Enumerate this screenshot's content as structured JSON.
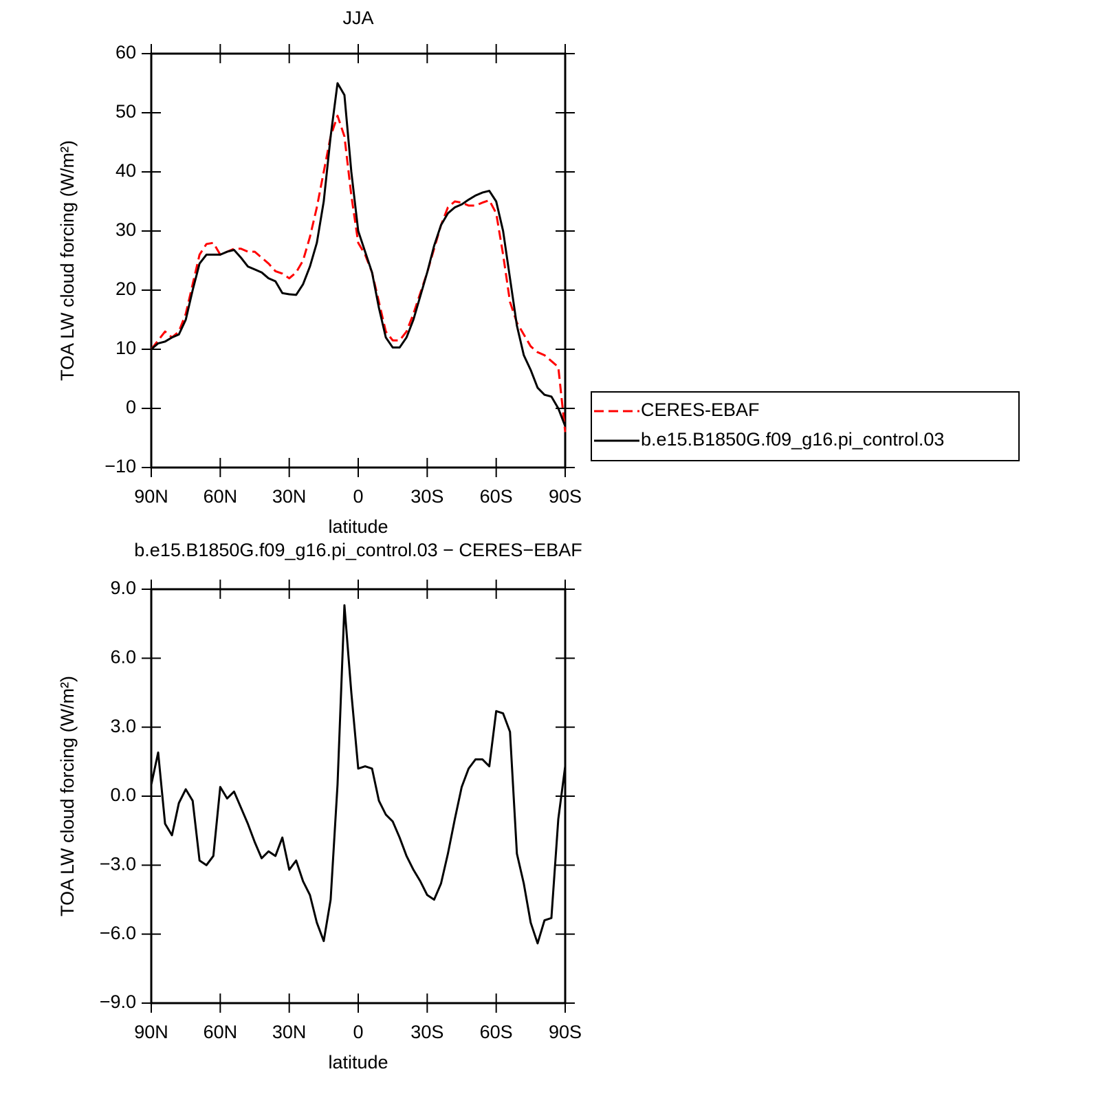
{
  "chart_data": [
    {
      "type": "line",
      "title": "JJA",
      "x_label": "latitude",
      "y_label": "TOA LW cloud forcing (W/m²)",
      "x": [
        90,
        87,
        84,
        81,
        78,
        75,
        72,
        69,
        66,
        63,
        60,
        57,
        54,
        51,
        48,
        45,
        42,
        39,
        36,
        33,
        30,
        27,
        24,
        21,
        18,
        15,
        12,
        9,
        6,
        3,
        0,
        -3,
        -6,
        -9,
        -12,
        -15,
        -18,
        -21,
        -24,
        -27,
        -30,
        -33,
        -36,
        -39,
        -42,
        -45,
        -48,
        -51,
        -54,
        -57,
        -60,
        -63,
        -66,
        -69,
        -72,
        -75,
        -78,
        -81,
        -84,
        -87,
        -90
      ],
      "xlim": [
        90,
        -90
      ],
      "xticks": [
        {
          "value": 90,
          "label": "90N"
        },
        {
          "value": 60,
          "label": "60N"
        },
        {
          "value": 30,
          "label": "30N"
        },
        0,
        {
          "value": -30,
          "label": "30S"
        },
        {
          "value": -60,
          "label": "60S"
        },
        {
          "value": -90,
          "label": "90S"
        }
      ],
      "ylim": [
        -10,
        60
      ],
      "yticks": [
        {
          "value": -10,
          "label": "−10"
        },
        0,
        10,
        20,
        30,
        40,
        50,
        60
      ],
      "legend": "right",
      "series": [
        {
          "name": "CERES-EBAF",
          "color": "#ff0000",
          "linestyle": "dashed",
          "values": [
            10,
            11.5,
            13,
            12,
            13,
            16,
            21,
            26,
            27.8,
            28,
            26,
            26.5,
            27,
            27,
            26.5,
            26.5,
            25.5,
            24.5,
            23.2,
            22.8,
            22,
            23,
            25,
            29,
            34,
            40,
            46,
            49.5,
            46,
            36,
            28,
            26,
            23,
            18,
            13,
            11.5,
            11.5,
            13,
            16,
            19.5,
            23,
            27,
            31,
            34,
            35,
            34.8,
            34.3,
            34.3,
            34.8,
            35.2,
            33,
            26,
            18,
            14.5,
            12.5,
            10.5,
            9.5,
            9,
            8,
            7,
            -4
          ]
        },
        {
          "name": "b.e15.B1850G.f09_g16.pi_control.03",
          "color": "#000000",
          "linestyle": "solid",
          "values": [
            10,
            11,
            11.3,
            12,
            12.5,
            15,
            20,
            24.5,
            26,
            26,
            26,
            26.5,
            26.8,
            25.5,
            24,
            23.5,
            23,
            22,
            21.5,
            19.5,
            19.3,
            19.2,
            21,
            24,
            28,
            35,
            46,
            55,
            53,
            40,
            30,
            26.5,
            23,
            17,
            12,
            10.3,
            10.3,
            12,
            15,
            19,
            23,
            27.5,
            31,
            33,
            34,
            34.5,
            35.3,
            36,
            36.5,
            36.8,
            35,
            30,
            22,
            14,
            9,
            6.5,
            3.5,
            2.3,
            2,
            0,
            -3
          ]
        }
      ]
    },
    {
      "type": "line",
      "title": "b.e15.B1850G.f09_g16.pi_control.03 − CERES−EBAF",
      "x_label": "latitude",
      "y_label": "TOA LW cloud forcing (W/m²)",
      "x": [
        90,
        87,
        84,
        81,
        78,
        75,
        72,
        69,
        66,
        63,
        60,
        57,
        54,
        51,
        48,
        45,
        42,
        39,
        36,
        33,
        30,
        27,
        24,
        21,
        18,
        15,
        12,
        9,
        6,
        3,
        0,
        -3,
        -6,
        -9,
        -12,
        -15,
        -18,
        -21,
        -24,
        -27,
        -30,
        -33,
        -36,
        -39,
        -42,
        -45,
        -48,
        -51,
        -54,
        -57,
        -60,
        -63,
        -66,
        -69,
        -72,
        -75,
        -78,
        -81,
        -84,
        -87,
        -90
      ],
      "xlim": [
        90,
        -90
      ],
      "xticks": [
        {
          "value": 90,
          "label": "90N"
        },
        {
          "value": 60,
          "label": "60N"
        },
        {
          "value": 30,
          "label": "30N"
        },
        0,
        {
          "value": -30,
          "label": "30S"
        },
        {
          "value": -60,
          "label": "60S"
        },
        {
          "value": -90,
          "label": "90S"
        }
      ],
      "ylim": [
        -9,
        9
      ],
      "yticks": [
        {
          "value": -9,
          "label": "−9.0"
        },
        {
          "value": -6,
          "label": "−6.0"
        },
        {
          "value": -3,
          "label": "−3.0"
        },
        {
          "value": 0,
          "label": "0.0"
        },
        {
          "value": 3,
          "label": "3.0"
        },
        {
          "value": 6,
          "label": "6.0"
        },
        {
          "value": 9,
          "label": "9.0"
        }
      ],
      "series": [
        {
          "color": "#000000",
          "linestyle": "solid",
          "values": [
            0.5,
            1.9,
            -1.2,
            -1.7,
            -0.3,
            0.3,
            -0.2,
            -2.8,
            -3.0,
            -2.6,
            0.4,
            -0.1,
            0.2,
            -0.5,
            -1.2,
            -2.0,
            -2.7,
            -2.4,
            -2.6,
            -1.8,
            -3.2,
            -2.8,
            -3.7,
            -4.3,
            -5.5,
            -6.3,
            -4.5,
            0.5,
            8.3,
            4.5,
            1.2,
            1.3,
            1.2,
            -0.2,
            -0.8,
            -1.1,
            -1.8,
            -2.6,
            -3.2,
            -3.7,
            -4.3,
            -4.5,
            -3.8,
            -2.5,
            -1.0,
            0.4,
            1.2,
            1.6,
            1.6,
            1.3,
            3.7,
            3.6,
            2.8,
            -2.5,
            -3.8,
            -5.5,
            -6.4,
            -5.4,
            -5.3,
            -1.0,
            1.3
          ]
        }
      ]
    }
  ]
}
